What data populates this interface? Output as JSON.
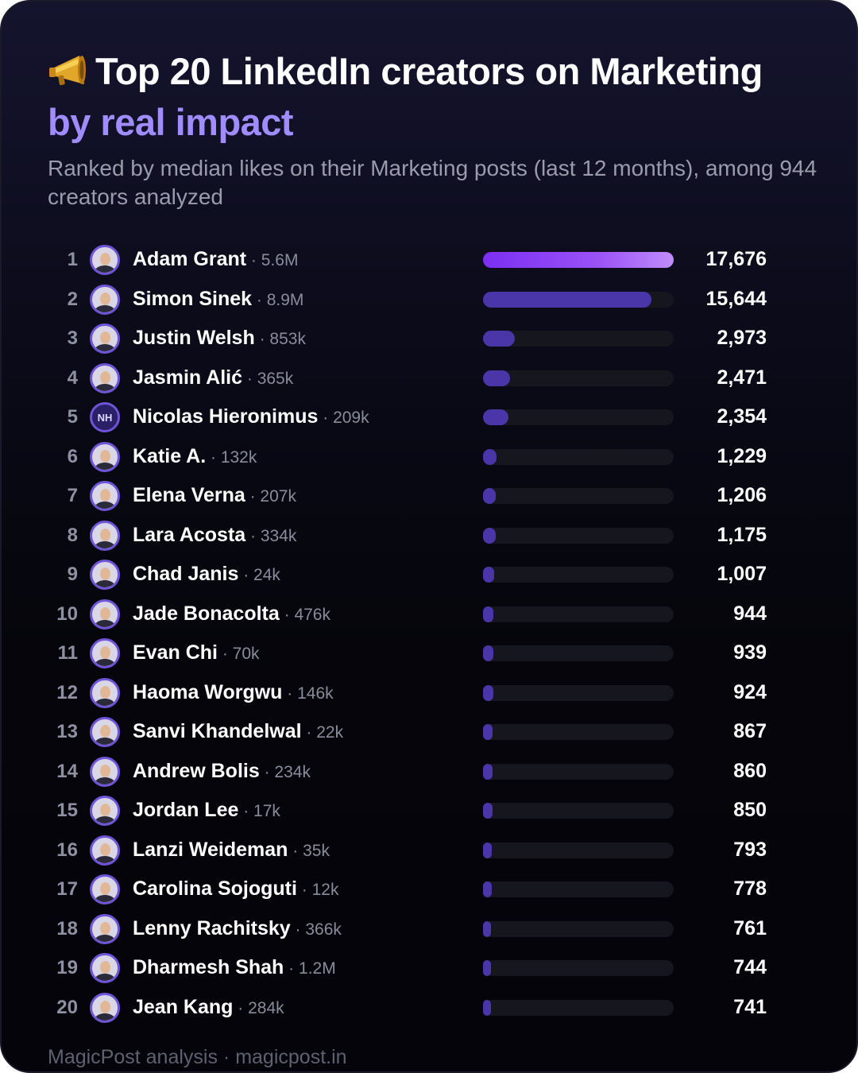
{
  "header": {
    "title_line1": "Top 20 LinkedIn creators on Marketing",
    "title_line2": "by real impact",
    "subtitle": "Ranked by median likes on their Marketing posts (last 12 months), among 944 creators analyzed",
    "title_icon": "megaphone-icon"
  },
  "footer": {
    "text": "MagicPost analysis · magicpost.in"
  },
  "colors": {
    "background": "#05050b",
    "accent": "#a18cff",
    "top_bar": "#7b2ff2",
    "bar": "#4a36a8",
    "track": "#16161f"
  },
  "chart_data": {
    "type": "bar",
    "orientation": "horizontal",
    "title": "Top 20 LinkedIn creators on Marketing by real impact",
    "subtitle": "Ranked by median likes on their Marketing posts (last 12 months), among 944 creators analyzed",
    "xlim": [
      0,
      17676
    ],
    "grid": false,
    "rows": [
      {
        "rank": "1",
        "name": "Adam Grant",
        "followers": "5.6M",
        "value": 17676,
        "label": "17,676"
      },
      {
        "rank": "2",
        "name": "Simon Sinek",
        "followers": "8.9M",
        "value": 15644,
        "label": "15,644"
      },
      {
        "rank": "3",
        "name": "Justin Welsh",
        "followers": "853k",
        "value": 2973,
        "label": "2,973"
      },
      {
        "rank": "4",
        "name": "Jasmin Alić",
        "followers": "365k",
        "value": 2471,
        "label": "2,471"
      },
      {
        "rank": "5",
        "name": "Nicolas Hieronimus",
        "followers": "209k",
        "value": 2354,
        "label": "2,354",
        "initials": "NH"
      },
      {
        "rank": "6",
        "name": "Katie A.",
        "followers": "132k",
        "value": 1229,
        "label": "1,229"
      },
      {
        "rank": "7",
        "name": "Elena Verna",
        "followers": "207k",
        "value": 1206,
        "label": "1,206"
      },
      {
        "rank": "8",
        "name": "Lara Acosta",
        "followers": "334k",
        "value": 1175,
        "label": "1,175"
      },
      {
        "rank": "9",
        "name": "Chad Janis",
        "followers": "24k",
        "value": 1007,
        "label": "1,007"
      },
      {
        "rank": "10",
        "name": "Jade Bonacolta",
        "followers": "476k",
        "value": 944,
        "label": "944"
      },
      {
        "rank": "11",
        "name": "Evan Chi",
        "followers": "70k",
        "value": 939,
        "label": "939"
      },
      {
        "rank": "12",
        "name": "Haoma Worgwu",
        "followers": "146k",
        "value": 924,
        "label": "924"
      },
      {
        "rank": "13",
        "name": "Sanvi Khandelwal",
        "followers": "22k",
        "value": 867,
        "label": "867"
      },
      {
        "rank": "14",
        "name": "Andrew Bolis",
        "followers": "234k",
        "value": 860,
        "label": "860"
      },
      {
        "rank": "15",
        "name": "Jordan Lee",
        "followers": "17k",
        "value": 850,
        "label": "850"
      },
      {
        "rank": "16",
        "name": "Lanzi Weideman",
        "followers": "35k",
        "value": 793,
        "label": "793"
      },
      {
        "rank": "17",
        "name": "Carolina Sojoguti",
        "followers": "12k",
        "value": 778,
        "label": "778"
      },
      {
        "rank": "18",
        "name": "Lenny Rachitsky",
        "followers": "366k",
        "value": 761,
        "label": "761"
      },
      {
        "rank": "19",
        "name": "Dharmesh Shah",
        "followers": "1.2M",
        "value": 744,
        "label": "744"
      },
      {
        "rank": "20",
        "name": "Jean Kang",
        "followers": "284k",
        "value": 741,
        "label": "741"
      }
    ]
  }
}
